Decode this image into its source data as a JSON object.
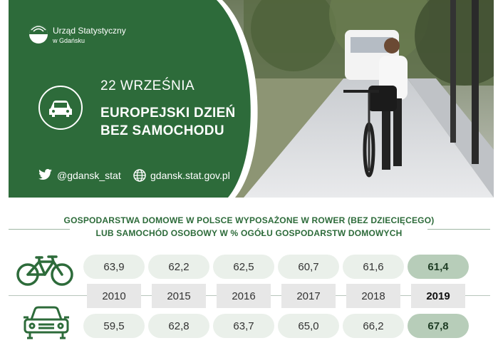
{
  "header": {
    "logo": {
      "line1": "Urząd Statystyczny",
      "line2": "w Gdańsku"
    },
    "date": "22 WRZEŚNIA",
    "headline_line1": "EUROPEJSKI DZIEŃ",
    "headline_line2": "BEZ SAMOCHODU",
    "twitter": "@gdansk_stat",
    "website": "gdansk.stat.gov.pl"
  },
  "colors": {
    "brand_green": "#2d6b3a",
    "pill": "#eaf0ea",
    "pill_highlight": "#b7cdb9",
    "year_bg": "#e7e7e7"
  },
  "section": {
    "title_line1": "GOSPODARSTWA DOMOWE W POLSCE WYPOSAŻONE W ROWER (BEZ DZIECIĘCEGO)",
    "title_line2": "LUB SAMOCHÓD OSOBOWY W % OGÓŁU GOSPODARSTW DOMOWYCH"
  },
  "table": {
    "years": [
      "2010",
      "2015",
      "2016",
      "2017",
      "2018",
      "2019"
    ],
    "bike": {
      "icon": "bicycle-icon",
      "values": [
        "63,9",
        "62,2",
        "62,5",
        "60,7",
        "61,6",
        "61,4"
      ]
    },
    "car": {
      "icon": "car-icon",
      "values": [
        "59,5",
        "62,8",
        "63,7",
        "65,0",
        "66,2",
        "67,8"
      ]
    }
  }
}
